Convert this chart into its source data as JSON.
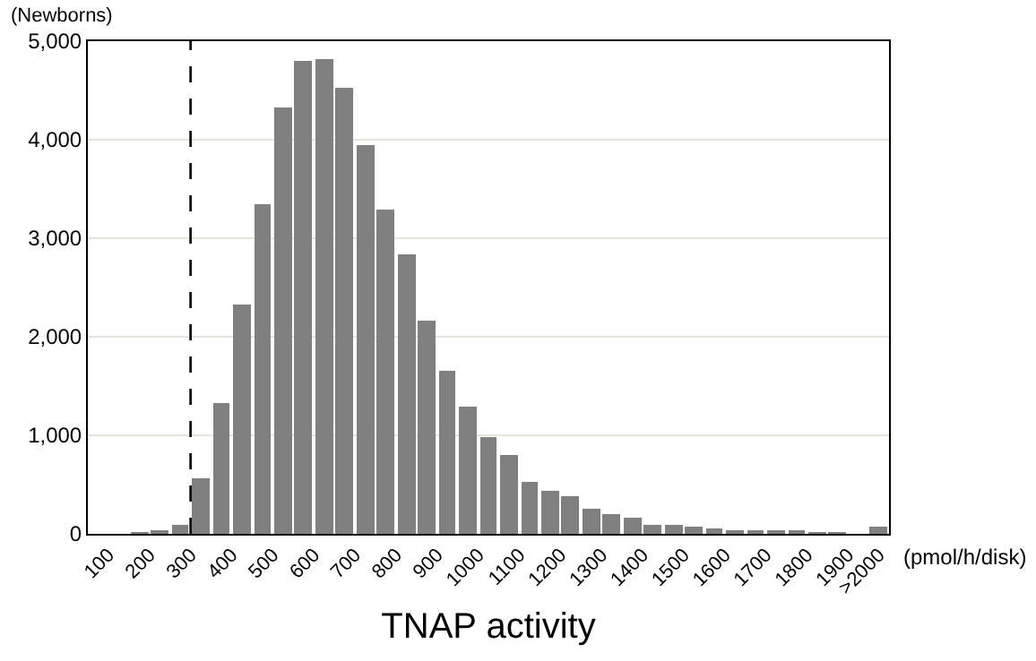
{
  "chart_data": {
    "type": "histogram",
    "xlabel": "TNAP activity",
    "ylabel": "(Newborns)",
    "annotations": [
      "(pmol/h/disk)"
    ],
    "bins": [
      50,
      100,
      150,
      200,
      250,
      300,
      350,
      400,
      450,
      500,
      550,
      600,
      650,
      700,
      750,
      800,
      850,
      900,
      950,
      1000,
      1050,
      1100,
      1150,
      1200,
      1250,
      1300,
      1350,
      1400,
      1450,
      1500,
      1550,
      1600,
      1650,
      1700,
      1750,
      1800,
      1850,
      1900,
      1950,
      2000
    ],
    "values": [
      0,
      0,
      10,
      40,
      100,
      560,
      1330,
      2330,
      3350,
      4320,
      4800,
      4820,
      4520,
      3940,
      3290,
      2840,
      2170,
      1650,
      1290,
      990,
      800,
      530,
      430,
      390,
      260,
      200,
      160,
      100,
      90,
      70,
      60,
      40,
      30,
      30,
      20,
      10,
      10,
      0,
      70
    ],
    "color": "#808080",
    "xlim": [
      50,
      2000
    ],
    "xticks": [
      100,
      200,
      300,
      400,
      500,
      600,
      700,
      800,
      900,
      1000,
      1100,
      1200,
      1300,
      1400,
      1500,
      1600,
      1700,
      1800,
      1900,
      {
        "value": 1975,
        "label": ">2000"
      }
    ],
    "ylim": [
      0,
      5000
    ],
    "yticks": [
      {
        "value": 0,
        "label": "0"
      },
      {
        "value": 1000,
        "label": "1,000"
      },
      {
        "value": 2000,
        "label": "2,000"
      },
      {
        "value": 3000,
        "label": "3,000"
      },
      {
        "value": 4000,
        "label": "4,000"
      },
      {
        "value": 5000,
        "label": "5,000"
      }
    ],
    "grid": "y",
    "ref_lines": [
      {
        "axis": "x",
        "value": 300,
        "label": null,
        "color": "#000000",
        "line_style": "dashed"
      }
    ]
  }
}
